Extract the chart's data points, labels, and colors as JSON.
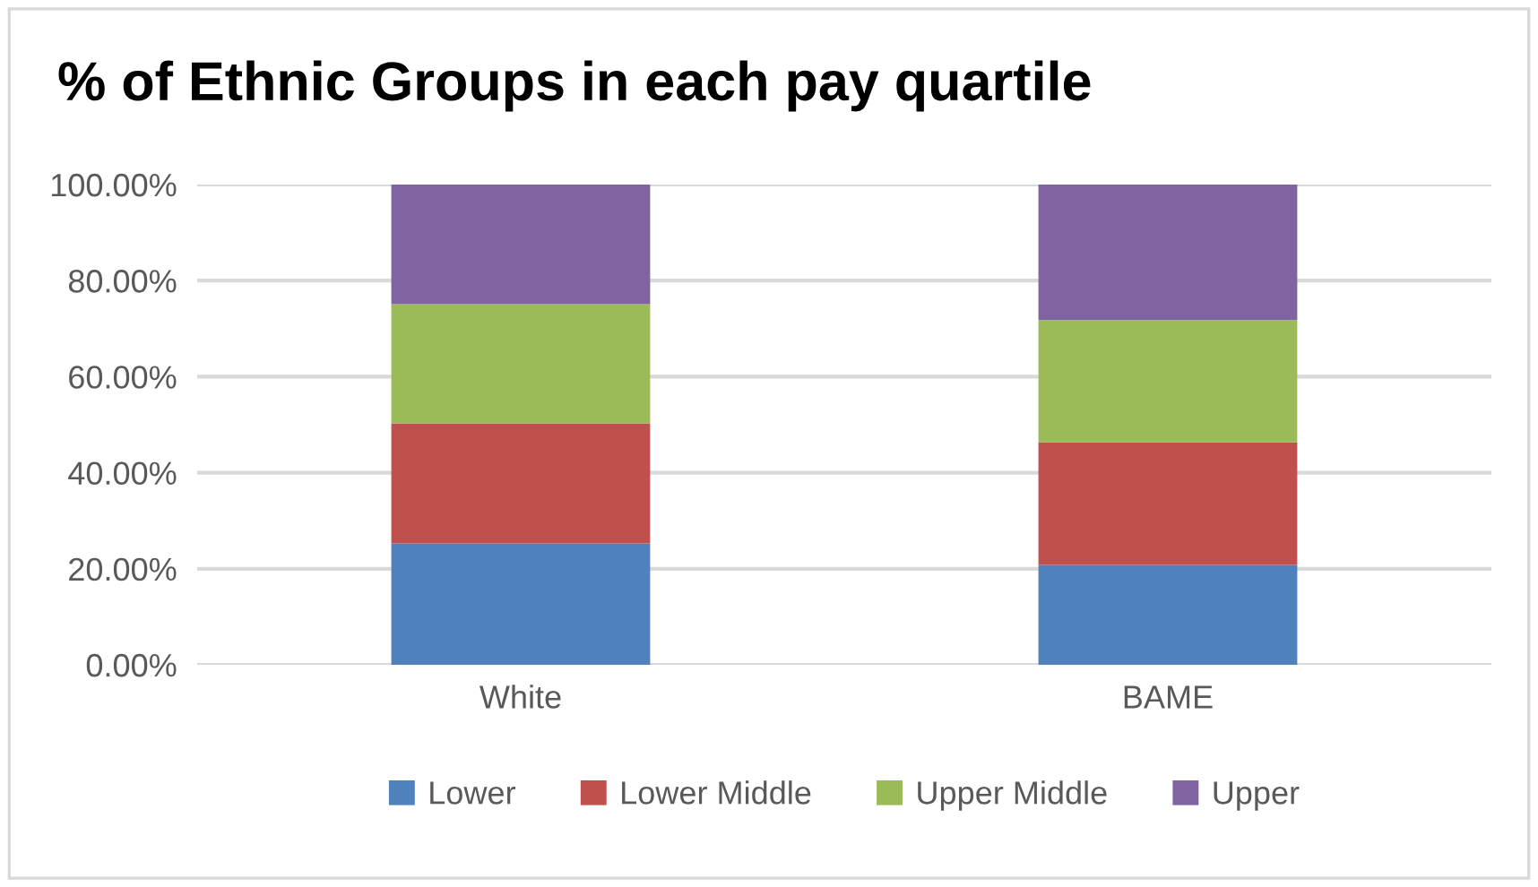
{
  "chart_data": {
    "type": "bar",
    "title": "% of Ethnic Groups in each pay quartile",
    "categories": [
      "White",
      "BAME"
    ],
    "stacked": true,
    "series": [
      {
        "name": "Lower",
        "color": "#4f81bd",
        "values": [
          25.3,
          20.8
        ]
      },
      {
        "name": "Lower Middle",
        "color": "#c0504d",
        "values": [
          25.0,
          25.5
        ]
      },
      {
        "name": "Upper Middle",
        "color": "#9bbb59",
        "values": [
          24.8,
          25.5
        ]
      },
      {
        "name": "Upper",
        "color": "#8064a2",
        "values": [
          24.9,
          28.2
        ]
      }
    ],
    "ylim": [
      0,
      100
    ],
    "yticks": [
      {
        "value": 0,
        "label": "0.00%"
      },
      {
        "value": 20,
        "label": "20.00%"
      },
      {
        "value": 40,
        "label": "40.00%"
      },
      {
        "value": 60,
        "label": "60.00%"
      },
      {
        "value": 80,
        "label": "80.00%"
      },
      {
        "value": 100,
        "label": "100.00%"
      }
    ],
    "grid": "y",
    "legend": "bottom"
  }
}
